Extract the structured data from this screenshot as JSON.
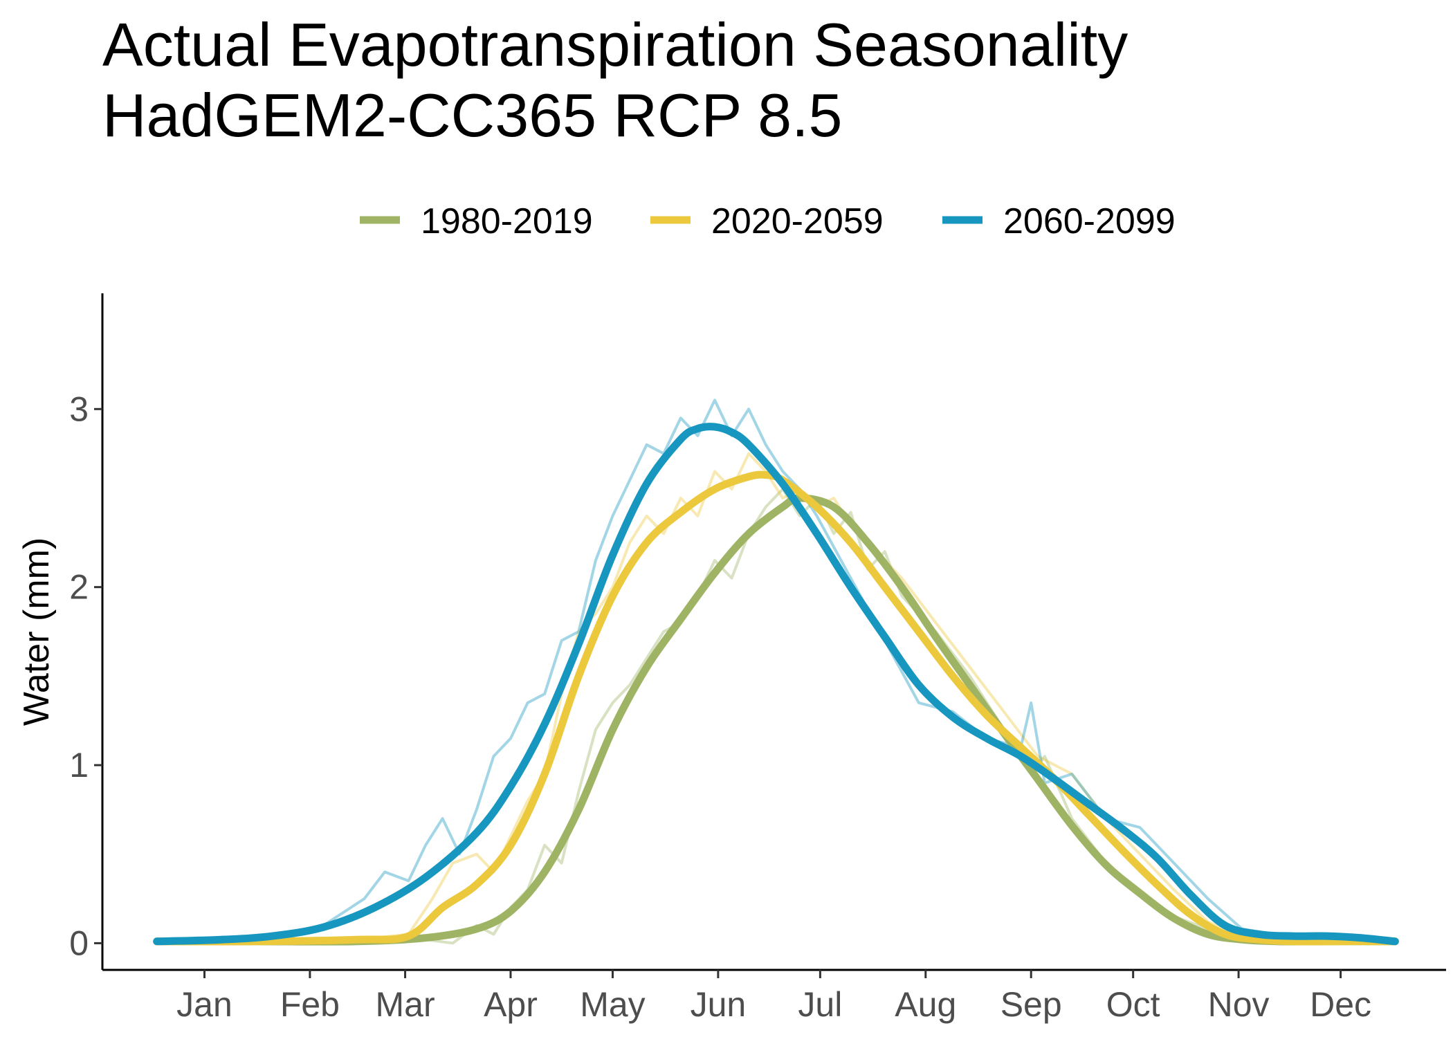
{
  "chart_data": {
    "type": "line",
    "title": "Actual Evapotranspiration Seasonality",
    "subtitle": "HadGEM2-CC365 RCP 8.5",
    "xlabel": "",
    "ylabel": "Water (mm)",
    "ylim": [
      -0.15,
      3.65
    ],
    "xlim": [
      -15,
      380
    ],
    "x_unit": "day of year",
    "x_ticks": [
      {
        "label": "Jan",
        "day": 15
      },
      {
        "label": "Feb",
        "day": 46
      },
      {
        "label": "Mar",
        "day": 74
      },
      {
        "label": "Apr",
        "day": 105
      },
      {
        "label": "May",
        "day": 135
      },
      {
        "label": "Jun",
        "day": 166
      },
      {
        "label": "Jul",
        "day": 196
      },
      {
        "label": "Aug",
        "day": 227
      },
      {
        "label": "Sep",
        "day": 258
      },
      {
        "label": "Oct",
        "day": 288
      },
      {
        "label": "Nov",
        "day": 319
      },
      {
        "label": "Dec",
        "day": 349
      }
    ],
    "y_ticks": [
      0,
      1,
      2,
      3
    ],
    "grid": false,
    "legend_position": "top",
    "series": [
      {
        "name": "1980-2019",
        "color": "#9eb464",
        "smooth": {
          "x": [
            1,
            30,
            60,
            80,
            95,
            105,
            115,
            125,
            135,
            145,
            155,
            165,
            175,
            185,
            190,
            200,
            210,
            220,
            230,
            240,
            250,
            260,
            270,
            280,
            290,
            300,
            310,
            320,
            330,
            340,
            350,
            365
          ],
          "y": [
            0.01,
            0.01,
            0.01,
            0.03,
            0.08,
            0.18,
            0.4,
            0.75,
            1.2,
            1.55,
            1.82,
            2.08,
            2.3,
            2.45,
            2.5,
            2.45,
            2.25,
            2.0,
            1.72,
            1.45,
            1.18,
            0.92,
            0.66,
            0.44,
            0.28,
            0.14,
            0.05,
            0.02,
            0.01,
            0.01,
            0.01,
            0.01
          ]
        },
        "raw": {
          "x": [
            1,
            30,
            60,
            80,
            88,
            95,
            100,
            105,
            110,
            115,
            120,
            125,
            130,
            135,
            140,
            145,
            150,
            155,
            160,
            165,
            170,
            175,
            180,
            185,
            190,
            195,
            200,
            205,
            210,
            215,
            220,
            230,
            240,
            250,
            258,
            262,
            270,
            280,
            290,
            300,
            310,
            320,
            330,
            340,
            350,
            365
          ],
          "y": [
            0.01,
            0.01,
            0.01,
            0.02,
            0.0,
            0.1,
            0.05,
            0.2,
            0.3,
            0.55,
            0.45,
            0.85,
            1.2,
            1.35,
            1.45,
            1.6,
            1.75,
            1.8,
            1.95,
            2.15,
            2.05,
            2.3,
            2.45,
            2.55,
            2.4,
            2.5,
            2.3,
            2.42,
            2.1,
            2.2,
            1.95,
            1.75,
            1.5,
            1.2,
            0.95,
            1.05,
            0.7,
            0.45,
            0.3,
            0.15,
            0.08,
            0.03,
            0.01,
            0.01,
            0.01,
            0.01
          ]
        }
      },
      {
        "name": "2020-2059",
        "color": "#ebc83c",
        "smooth": {
          "x": [
            1,
            30,
            60,
            75,
            85,
            95,
            105,
            115,
            125,
            135,
            145,
            155,
            165,
            175,
            180,
            185,
            195,
            205,
            215,
            225,
            235,
            245,
            255,
            265,
            275,
            285,
            295,
            305,
            315,
            325,
            335,
            350,
            365
          ],
          "y": [
            0.01,
            0.01,
            0.02,
            0.04,
            0.2,
            0.33,
            0.55,
            0.95,
            1.5,
            1.95,
            2.25,
            2.42,
            2.55,
            2.62,
            2.63,
            2.6,
            2.45,
            2.25,
            2.0,
            1.75,
            1.5,
            1.28,
            1.1,
            0.92,
            0.72,
            0.52,
            0.33,
            0.16,
            0.05,
            0.02,
            0.01,
            0.01,
            0.01
          ]
        },
        "raw": {
          "x": [
            1,
            30,
            60,
            75,
            82,
            88,
            95,
            100,
            105,
            110,
            115,
            120,
            125,
            130,
            135,
            140,
            145,
            150,
            155,
            160,
            165,
            170,
            175,
            180,
            185,
            190,
            195,
            200,
            205,
            210,
            220,
            230,
            240,
            250,
            260,
            270,
            280,
            290,
            300,
            310,
            320,
            330,
            340,
            350,
            365
          ],
          "y": [
            0.01,
            0.01,
            0.02,
            0.05,
            0.25,
            0.45,
            0.5,
            0.4,
            0.6,
            0.8,
            0.95,
            1.4,
            1.75,
            1.85,
            2.0,
            2.25,
            2.4,
            2.3,
            2.5,
            2.4,
            2.65,
            2.55,
            2.75,
            2.65,
            2.5,
            2.55,
            2.45,
            2.5,
            2.35,
            2.25,
            2.05,
            1.8,
            1.55,
            1.3,
            1.05,
            0.95,
            0.7,
            0.5,
            0.3,
            0.12,
            0.04,
            0.02,
            0.01,
            0.01,
            0.01
          ]
        }
      },
      {
        "name": "2060-2099",
        "color": "#1796bf",
        "smooth": {
          "x": [
            1,
            20,
            35,
            50,
            65,
            80,
            95,
            105,
            115,
            125,
            135,
            145,
            155,
            160,
            165,
            170,
            175,
            185,
            195,
            205,
            215,
            225,
            235,
            245,
            255,
            265,
            275,
            285,
            295,
            305,
            315,
            325,
            335,
            345,
            355,
            365
          ],
          "y": [
            0.01,
            0.02,
            0.04,
            0.09,
            0.2,
            0.37,
            0.62,
            0.88,
            1.23,
            1.68,
            2.18,
            2.58,
            2.83,
            2.89,
            2.9,
            2.87,
            2.8,
            2.58,
            2.3,
            2.0,
            1.72,
            1.45,
            1.27,
            1.15,
            1.05,
            0.92,
            0.78,
            0.64,
            0.48,
            0.27,
            0.1,
            0.05,
            0.04,
            0.04,
            0.03,
            0.01
          ]
        },
        "raw": {
          "x": [
            1,
            20,
            35,
            50,
            62,
            68,
            75,
            80,
            85,
            90,
            95,
            100,
            105,
            110,
            115,
            120,
            125,
            130,
            135,
            140,
            145,
            150,
            155,
            160,
            165,
            170,
            175,
            180,
            185,
            190,
            195,
            205,
            215,
            225,
            235,
            245,
            255,
            258,
            262,
            270,
            280,
            290,
            300,
            310,
            320,
            330,
            340,
            350,
            365
          ],
          "y": [
            0.01,
            0.02,
            0.04,
            0.1,
            0.25,
            0.4,
            0.35,
            0.55,
            0.7,
            0.5,
            0.75,
            1.05,
            1.15,
            1.35,
            1.4,
            1.7,
            1.75,
            2.15,
            2.4,
            2.6,
            2.8,
            2.75,
            2.95,
            2.85,
            3.05,
            2.85,
            3.0,
            2.8,
            2.65,
            2.55,
            2.4,
            2.05,
            1.7,
            1.35,
            1.3,
            1.15,
            1.1,
            1.35,
            0.9,
            0.95,
            0.7,
            0.65,
            0.45,
            0.25,
            0.08,
            0.05,
            0.04,
            0.04,
            0.01
          ]
        }
      }
    ]
  }
}
